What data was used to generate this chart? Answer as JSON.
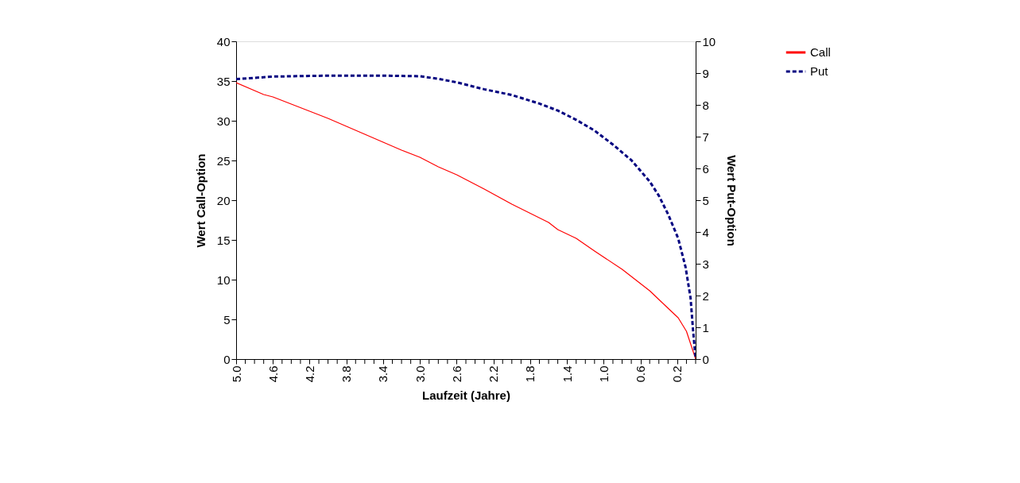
{
  "chart_data": {
    "type": "line",
    "xlabel": "Laufzeit (Jahre)",
    "ylabel": "Wert Call-Option",
    "y2label": "Wert Put-Option",
    "xlim": [
      5.0,
      0.0
    ],
    "xticks": [
      {
        "value": 5.0,
        "label": "5.0"
      },
      {
        "value": 4.9,
        "label": null
      },
      {
        "value": 4.8,
        "label": null
      },
      {
        "value": 4.7,
        "label": null
      },
      {
        "value": 4.6,
        "label": "4.6"
      },
      {
        "value": 4.5,
        "label": null
      },
      {
        "value": 4.4,
        "label": null
      },
      {
        "value": 4.3,
        "label": null
      },
      {
        "value": 4.2,
        "label": "4.2"
      },
      {
        "value": 4.1,
        "label": null
      },
      {
        "value": 4.0,
        "label": null
      },
      {
        "value": 3.9,
        "label": null
      },
      {
        "value": 3.8,
        "label": "3.8"
      },
      {
        "value": 3.7,
        "label": null
      },
      {
        "value": 3.6,
        "label": null
      },
      {
        "value": 3.5,
        "label": null
      },
      {
        "value": 3.4,
        "label": "3.4"
      },
      {
        "value": 3.3,
        "label": null
      },
      {
        "value": 3.2,
        "label": null
      },
      {
        "value": 3.1,
        "label": null
      },
      {
        "value": 3.0,
        "label": "3.0"
      },
      {
        "value": 2.9,
        "label": null
      },
      {
        "value": 2.8,
        "label": null
      },
      {
        "value": 2.7,
        "label": null
      },
      {
        "value": 2.6,
        "label": "2.6"
      },
      {
        "value": 2.5,
        "label": null
      },
      {
        "value": 2.4,
        "label": null
      },
      {
        "value": 2.3,
        "label": null
      },
      {
        "value": 2.2,
        "label": "2.2"
      },
      {
        "value": 2.1,
        "label": null
      },
      {
        "value": 2.0,
        "label": null
      },
      {
        "value": 1.9,
        "label": null
      },
      {
        "value": 1.8,
        "label": "1.8"
      },
      {
        "value": 1.7,
        "label": null
      },
      {
        "value": 1.6,
        "label": null
      },
      {
        "value": 1.5,
        "label": null
      },
      {
        "value": 1.4,
        "label": "1.4"
      },
      {
        "value": 1.3,
        "label": null
      },
      {
        "value": 1.2,
        "label": null
      },
      {
        "value": 1.1,
        "label": null
      },
      {
        "value": 1.0,
        "label": "1.0"
      },
      {
        "value": 0.9,
        "label": null
      },
      {
        "value": 0.8,
        "label": null
      },
      {
        "value": 0.7,
        "label": null
      },
      {
        "value": 0.6,
        "label": "0.6"
      },
      {
        "value": 0.5,
        "label": null
      },
      {
        "value": 0.4,
        "label": null
      },
      {
        "value": 0.3,
        "label": null
      },
      {
        "value": 0.2,
        "label": "0.2"
      },
      {
        "value": 0.1,
        "label": null
      },
      {
        "value": 0.0,
        "label": null
      }
    ],
    "ylim": [
      0,
      40
    ],
    "yticks": [
      0,
      5,
      10,
      15,
      20,
      25,
      30,
      35,
      40
    ],
    "y2lim": [
      0,
      10
    ],
    "y2ticks": [
      0,
      1,
      2,
      3,
      4,
      5,
      6,
      7,
      8,
      9,
      10
    ],
    "grid": false,
    "legend": "right",
    "series": [
      {
        "name": "Call",
        "color": "#ff0000",
        "line_style": "solid",
        "x": [
          5.0,
          4.7,
          4.6,
          4.4,
          4.2,
          4.0,
          3.8,
          3.6,
          3.4,
          3.2,
          3.0,
          2.8,
          2.6,
          2.4,
          2.3,
          2.0,
          1.6,
          1.5,
          1.3,
          1.1,
          0.8,
          0.5,
          0.3,
          0.19,
          0.1,
          0.0
        ],
        "values": [
          34.8,
          33.3,
          33.0,
          32.1,
          31.2,
          30.3,
          29.3,
          28.3,
          27.3,
          26.3,
          25.4,
          24.2,
          23.2,
          22.0,
          21.4,
          19.5,
          17.2,
          16.3,
          15.2,
          13.6,
          11.3,
          8.6,
          6.4,
          5.2,
          3.5,
          0
        ]
      },
      {
        "name": "Put",
        "color": "#000080",
        "line_style": "dashed",
        "axis": "y2",
        "x": [
          5.0,
          4.6,
          4.0,
          3.4,
          3.0,
          2.8,
          2.6,
          2.3,
          2.0,
          1.7,
          1.5,
          1.3,
          1.1,
          0.9,
          0.7,
          0.5,
          0.4,
          0.3,
          0.19,
          0.11,
          0.055,
          0.03,
          0.0
        ],
        "values": [
          8.81,
          8.89,
          8.92,
          8.92,
          8.9,
          8.82,
          8.71,
          8.49,
          8.31,
          8.04,
          7.82,
          7.53,
          7.19,
          6.75,
          6.26,
          5.59,
          5.14,
          4.56,
          3.8,
          2.9,
          1.92,
          0.98,
          0
        ]
      }
    ]
  }
}
